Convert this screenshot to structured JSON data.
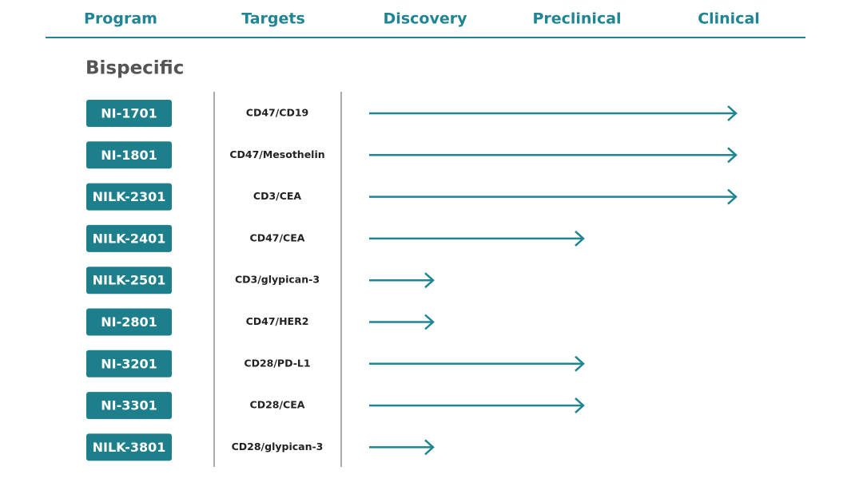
{
  "header": {
    "columns": [
      "Program",
      "Targets",
      "Discovery",
      "Preclinical",
      "Clinical"
    ]
  },
  "section": {
    "title": "Bispecific"
  },
  "programs": [
    {
      "name": "NI-1701",
      "targets": "CD47/CD19",
      "stage": "Clinical"
    },
    {
      "name": "NI-1801",
      "targets": "CD47/Mesothelin",
      "stage": "Clinical"
    },
    {
      "name": "NILK-2301",
      "targets": "CD3/CEA",
      "stage": "Clinical"
    },
    {
      "name": "NILK-2401",
      "targets": "CD47/CEA",
      "stage": "Preclinical"
    },
    {
      "name": "NILK-2501",
      "targets": "CD3/glypican-3",
      "stage": "Discovery"
    },
    {
      "name": "NI-2801",
      "targets": "CD47/HER2",
      "stage": "Discovery"
    },
    {
      "name": "NI-3201",
      "targets": "CD28/PD-L1",
      "stage": "Preclinical"
    },
    {
      "name": "NI-3301",
      "targets": "CD28/CEA",
      "stage": "Preclinical"
    },
    {
      "name": "NILK-3801",
      "targets": "CD28/glypican-3",
      "stage": "Discovery"
    }
  ]
}
